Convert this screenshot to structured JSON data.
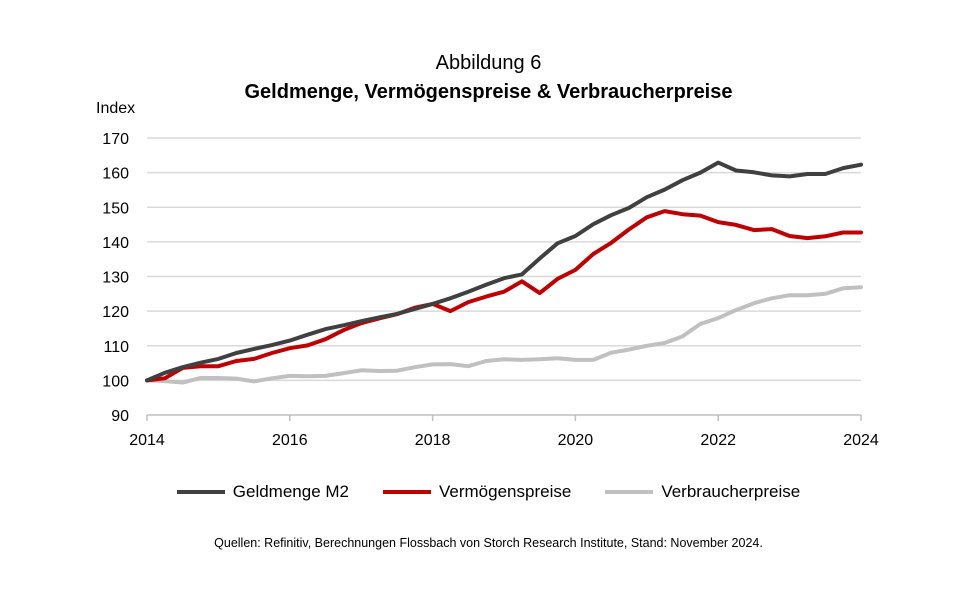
{
  "figure": {
    "supertitle": "Abbildung 6",
    "source": "Quellen: Refinitiv, Berechnungen Flossbach von Storch Research Institute, Stand: November 2024."
  },
  "chart_data": {
    "type": "line",
    "title": "Geldmenge, Vermögenspreise & Verbraucherpreise",
    "xlabel": "",
    "ylabel": "Index",
    "xlim": [
      2014,
      2024
    ],
    "ylim": [
      90,
      170
    ],
    "xticks": [
      2014,
      2016,
      2018,
      2020,
      2022,
      2024
    ],
    "yticks": [
      90,
      100,
      110,
      120,
      130,
      140,
      150,
      160,
      170
    ],
    "grid": true,
    "legend_position": "bottom",
    "x": [
      2014.0,
      2014.25,
      2014.5,
      2014.75,
      2015.0,
      2015.25,
      2015.5,
      2015.75,
      2016.0,
      2016.25,
      2016.5,
      2016.75,
      2017.0,
      2017.25,
      2017.5,
      2017.75,
      2018.0,
      2018.25,
      2018.5,
      2018.75,
      2019.0,
      2019.25,
      2019.5,
      2019.75,
      2020.0,
      2020.25,
      2020.5,
      2020.75,
      2021.0,
      2021.25,
      2021.5,
      2021.75,
      2022.0,
      2022.25,
      2022.5,
      2022.75,
      2023.0,
      2023.25,
      2023.5,
      2023.75,
      2024.0
    ],
    "series": [
      {
        "name": "Geldmenge M2",
        "color": "#404040",
        "values": [
          100,
          102.2,
          103.8,
          105.1,
          106.2,
          107.9,
          109.1,
          110.2,
          111.5,
          113.2,
          114.8,
          115.9,
          117.1,
          118.2,
          119.2,
          120.6,
          122.1,
          123.7,
          125.6,
          127.6,
          129.5,
          130.6,
          135.2,
          139.6,
          141.7,
          145.1,
          147.7,
          149.8,
          152.9,
          155.1,
          157.8,
          160.0,
          162.9,
          160.6,
          160.1,
          159.2,
          158.9,
          159.6,
          159.6,
          161.3,
          162.3
        ]
      },
      {
        "name": "Vermögenspreise",
        "color": "#c00000",
        "values": [
          100,
          100.6,
          103.6,
          104.1,
          104.1,
          105.6,
          106.2,
          107.9,
          109.3,
          110.1,
          111.9,
          114.5,
          116.5,
          117.9,
          119.1,
          121.0,
          122.1,
          120.0,
          122.6,
          124.2,
          125.6,
          128.6,
          125.2,
          129.3,
          131.9,
          136.5,
          139.7,
          143.6,
          147.1,
          148.9,
          148.0,
          147.6,
          145.7,
          144.9,
          143.4,
          143.7,
          141.7,
          141.1,
          141.6,
          142.7,
          142.7
        ]
      },
      {
        "name": "Verbraucherpreise",
        "color": "#c0c0c0",
        "values": [
          100,
          99.8,
          99.4,
          100.7,
          100.7,
          100.5,
          99.7,
          100.6,
          101.3,
          101.2,
          101.3,
          102.1,
          102.9,
          102.7,
          102.8,
          103.8,
          104.6,
          104.7,
          104.1,
          105.6,
          106.1,
          105.9,
          106.1,
          106.4,
          105.9,
          105.9,
          108.0,
          108.9,
          110.0,
          110.8,
          112.7,
          116.3,
          118.0,
          120.3,
          122.3,
          123.7,
          124.6,
          124.6,
          125.0,
          126.6,
          126.9
        ]
      }
    ]
  }
}
